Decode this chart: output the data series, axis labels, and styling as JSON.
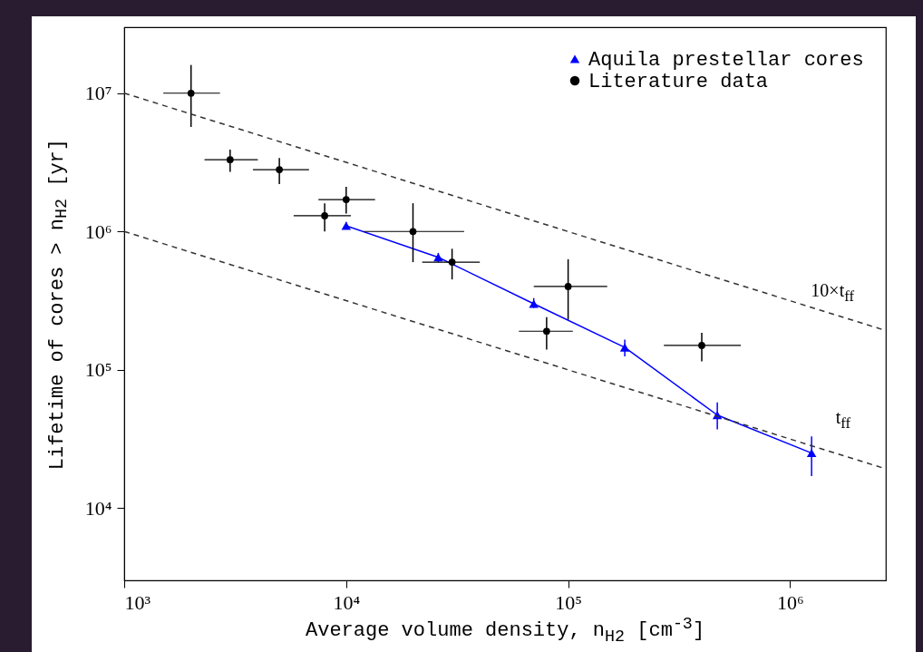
{
  "chart_data": {
    "type": "scatter",
    "xlabel": "Average volume density, n$_{H2}$ [cm$^{-3}$]",
    "ylabel": "Lifetime of cores > n$_{H2}$  [yr]",
    "log": "xy",
    "grid": false,
    "legend": "top right",
    "xlim": [
      1000,
      2700000
    ],
    "ylim": [
      3000,
      30000000
    ],
    "xticks": [
      {
        "value": 1000,
        "label": "10³"
      },
      {
        "value": 10000,
        "label": "10⁴"
      },
      {
        "value": 100000,
        "label": "10⁵"
      },
      {
        "value": 1000000,
        "label": "10⁶"
      }
    ],
    "yticks": [
      {
        "value": 10000,
        "label": "10⁴"
      },
      {
        "value": 100000,
        "label": "10⁵"
      },
      {
        "value": 1000000,
        "label": "10⁶"
      },
      {
        "value": 10000000,
        "label": "10⁷"
      }
    ],
    "series": [
      {
        "name": "Aquila prestellar cores",
        "type": "line",
        "color": "#0000ff",
        "marker": "triangle",
        "line_style": "solid",
        "x": [
          10000,
          26000,
          70000,
          180000,
          470000,
          1250000
        ],
        "values": [
          1100000,
          650000,
          300000,
          145000,
          47000,
          25000
        ],
        "errors": [
          [
            1050000,
            1170000
          ],
          [
            600000,
            700000
          ],
          [
            280000,
            330000
          ],
          [
            125000,
            165000
          ],
          [
            37000,
            58000
          ],
          [
            17000,
            33000
          ]
        ]
      },
      {
        "name": "Literature data",
        "color": "#000000",
        "marker": "circle",
        "x": [
          2000,
          3000,
          5000,
          8000,
          10000,
          20000,
          30000,
          80000,
          100000,
          400000
        ],
        "values": [
          10000000,
          3300000,
          2800000,
          1300000,
          1700000,
          1000000,
          600000,
          190000,
          400000,
          150000
        ],
        "errors": [
          [
            5700000,
            16000000
          ],
          [
            2700000,
            3900000
          ],
          [
            2200000,
            3400000
          ],
          [
            1000000,
            1600000
          ],
          [
            1350000,
            2100000
          ],
          [
            600000,
            1600000
          ],
          [
            450000,
            750000
          ],
          [
            140000,
            240000
          ],
          [
            230000,
            630000
          ],
          [
            115000,
            185000
          ]
        ],
        "xerrors": [
          [
            1500,
            2700
          ],
          [
            2300,
            4000
          ],
          [
            3800,
            6800
          ],
          [
            5800,
            10500
          ],
          [
            7500,
            13500
          ],
          [
            12000,
            34000
          ],
          [
            22000,
            40000
          ],
          [
            60000,
            105000
          ],
          [
            70000,
            150000
          ],
          [
            270000,
            600000
          ]
        ]
      },
      {
        "type": "line",
        "color": "#333333",
        "marker": "none",
        "line_style": "dashed",
        "x": [
          1000,
          2700000
        ],
        "values": [
          10000000,
          192000
        ]
      },
      {
        "type": "line",
        "color": "#333333",
        "marker": "none",
        "line_style": "dashed",
        "x": [
          1000,
          2700000
        ],
        "values": [
          1000000,
          19200
        ]
      }
    ],
    "annotations": [
      "10×t$_{ff}$",
      "t$_{ff}$"
    ]
  }
}
